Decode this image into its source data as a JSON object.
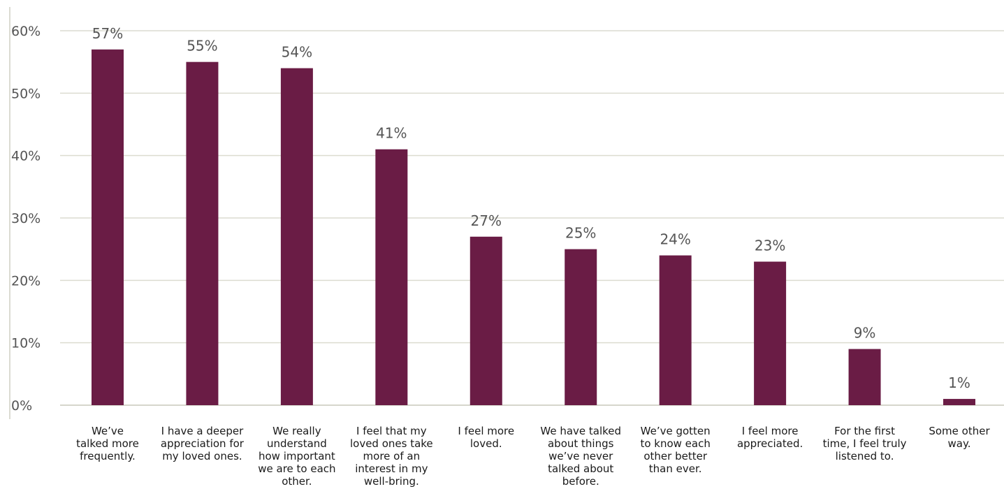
{
  "chart_data": {
    "type": "bar",
    "y_ticks": [
      "0%",
      "10%",
      "20%",
      "30%",
      "40%",
      "50%",
      "60%"
    ],
    "ylim": [
      0,
      60
    ],
    "grid": true,
    "bar_color": "#6a1c45",
    "categories": [
      "We’ve talked more frequently.",
      "I have a deeper appreciation for my loved ones.",
      "We really understand how important we are to each other.",
      "I feel that my loved ones take more of an interest in my well-bring.",
      "I feel more loved.",
      "We have talked about things we’ve never talked about before.",
      "We’ve gotten to know each other better than ever.",
      "I feel more appreciated.",
      "For the first time, I feel truly listened to.",
      "Some other way."
    ],
    "category_lines": [
      [
        "We’ve",
        "talked more",
        "frequently."
      ],
      [
        "I have a deeper",
        "appreciation for",
        "my loved ones."
      ],
      [
        "We really",
        "understand",
        "how important",
        "we are to each",
        "other."
      ],
      [
        "I feel that my",
        "loved ones take",
        "more of an",
        "interest in my",
        "well-bring."
      ],
      [
        "I feel more",
        "loved."
      ],
      [
        "We have talked",
        "about things",
        "we’ve never",
        "talked about",
        "before."
      ],
      [
        "We’ve gotten",
        "to know each",
        "other better",
        "than ever."
      ],
      [
        "I feel more",
        "appreciated."
      ],
      [
        "For the first",
        "time, I feel truly",
        "listened to."
      ],
      [
        "Some other",
        "way."
      ]
    ],
    "values": [
      57,
      55,
      54,
      41,
      27,
      25,
      24,
      23,
      9,
      1
    ],
    "data_labels": [
      "57%",
      "55%",
      "54%",
      "41%",
      "27%",
      "25%",
      "24%",
      "23%",
      "9%",
      "1%"
    ]
  }
}
